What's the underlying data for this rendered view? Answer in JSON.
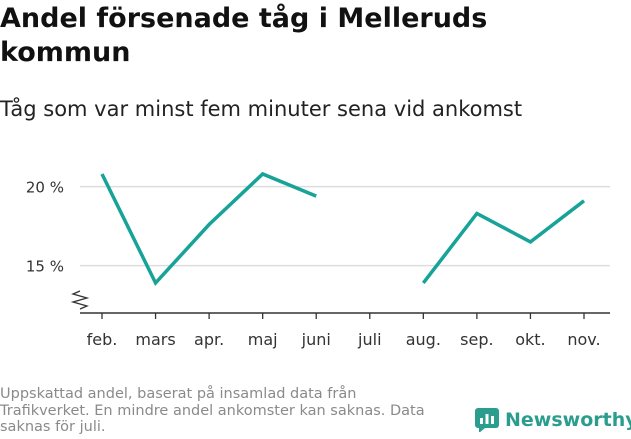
{
  "chart_data": {
    "type": "line",
    "title": "Andel försenade tåg i Melleruds kommun",
    "subtitle": "Tåg som var minst fem minuter sena vid ankomst",
    "categories": [
      "feb.",
      "mars",
      "apr.",
      "maj",
      "juni",
      "juli",
      "aug.",
      "sep.",
      "okt.",
      "nov."
    ],
    "series": [
      {
        "values": [
          20.8,
          13.9,
          17.6,
          20.8,
          19.4,
          null,
          13.9,
          18.3,
          16.5,
          19.1
        ]
      }
    ],
    "ylim": [
      12,
      22
    ],
    "yticks": [
      15,
      20
    ],
    "ytick_labels": [
      "15 %",
      "20 %"
    ],
    "grid": true,
    "y_axis_break": true,
    "line_color": "#17a398"
  },
  "footnote": "Uppskattad andel, baserat på insamlad data från Trafikverket. En mindre andel ankomster kan saknas. Data saknas för juli.",
  "brand": {
    "name": "Newsworthy",
    "color": "#2a9d8f"
  }
}
